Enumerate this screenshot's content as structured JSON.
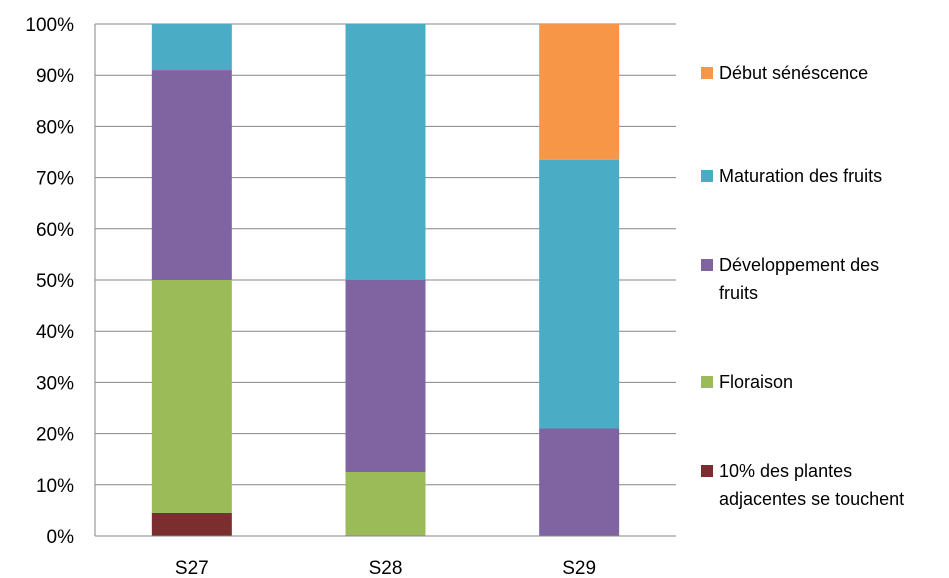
{
  "chart_data": {
    "type": "bar",
    "stacked": true,
    "percent": true,
    "categories": [
      "S27",
      "S28",
      "S29"
    ],
    "ylim": [
      0,
      100
    ],
    "yticks": [
      "0%",
      "10%",
      "20%",
      "30%",
      "40%",
      "50%",
      "60%",
      "70%",
      "80%",
      "90%",
      "100%"
    ],
    "grid": true,
    "legend_position": "right",
    "series": [
      {
        "name": "10% des plantes adjacentes se touchent",
        "legend_lines": [
          "10% des plantes",
          "adjacentes se touchent"
        ],
        "color": "#7B2E2E",
        "values": [
          4.5,
          0,
          0
        ]
      },
      {
        "name": "Floraison",
        "legend_lines": [
          "Floraison"
        ],
        "color": "#9BBB59",
        "values": [
          45.5,
          12.5,
          0
        ]
      },
      {
        "name": "Développement des fruits",
        "legend_lines": [
          "Développement des",
          "fruits"
        ],
        "color": "#8064A2",
        "values": [
          41,
          37.5,
          21
        ]
      },
      {
        "name": "Maturation des fruits",
        "legend_lines": [
          "Maturation des fruits"
        ],
        "color": "#4BACC6",
        "values": [
          9,
          50,
          52.5
        ]
      },
      {
        "name": "Début sénéscence",
        "legend_lines": [
          "Début sénéscence"
        ],
        "color": "#F79646",
        "values": [
          0,
          0,
          26.5
        ]
      }
    ]
  }
}
